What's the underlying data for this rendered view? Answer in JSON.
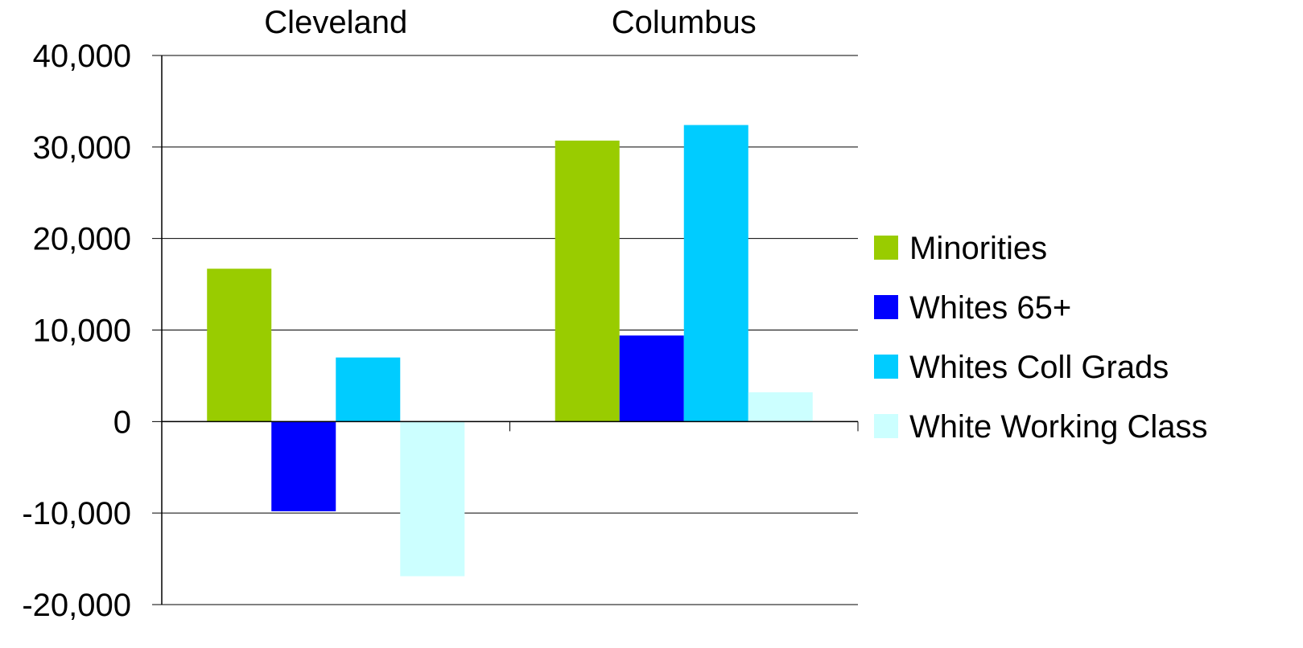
{
  "chart_data": {
    "type": "bar",
    "title": "",
    "xlabel": "",
    "ylabel": "",
    "categories": [
      "Cleveland",
      "Columbus"
    ],
    "series": [
      {
        "name": "Minorities",
        "color": "#99CC00",
        "values": [
          16700,
          30700
        ]
      },
      {
        "name": "Whites 65+",
        "color": "#0000FF",
        "values": [
          -9800,
          9400
        ]
      },
      {
        "name": "Whites Coll Grads",
        "color": "#00CCFF",
        "values": [
          7000,
          32400
        ]
      },
      {
        "name": "White Working Class",
        "color": "#CCFFFF",
        "values": [
          -16900,
          3200
        ]
      }
    ],
    "ylim": [
      -20000,
      40000
    ],
    "yticks": [
      40000,
      30000,
      20000,
      10000,
      0,
      -10000,
      -20000
    ],
    "ytick_labels": [
      "40,000",
      "30,000",
      "20,000",
      "10,000",
      "0",
      "-10,000",
      "-20,000"
    ],
    "grid": "horizontal",
    "category_axis_position": "top",
    "legend": "right"
  }
}
